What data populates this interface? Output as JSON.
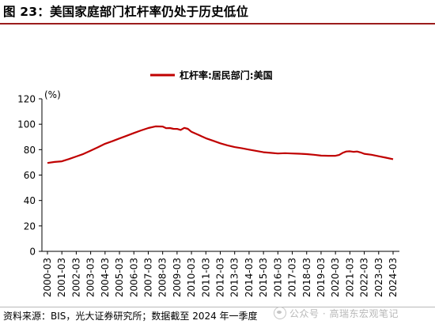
{
  "figure": {
    "title": "图 23：美国家庭部门杠杆率仍处于历史低位",
    "source": "资料来源：BIS，光大证券研究所；数据截至 2024 年一季度",
    "watermark": "公众号 · 高瑞东宏观笔记"
  },
  "colors": {
    "series": "#c00000",
    "title_rule": "#9b1c1c"
  },
  "chart_data": {
    "type": "line",
    "ylabel": "(%)",
    "ylim": [
      0,
      120
    ],
    "yticks": [
      0,
      20,
      40,
      60,
      80,
      100,
      120
    ],
    "grid": false,
    "legend_position": "top-center",
    "x_tick_labels": [
      "2000-03",
      "2001-03",
      "2002-03",
      "2003-03",
      "2004-03",
      "2005-03",
      "2006-03",
      "2007-03",
      "2008-03",
      "2009-03",
      "2010-03",
      "2011-03",
      "2012-03",
      "2013-03",
      "2014-03",
      "2015-03",
      "2016-03",
      "2017-03",
      "2018-03",
      "2019-03",
      "2020-03",
      "2021-03",
      "2022-03",
      "2023-03",
      "2024-03"
    ],
    "series": [
      {
        "name": "杠杆率:居民部门:美国",
        "color": "#c00000",
        "x": [
          2000.0,
          2000.5,
          2001.0,
          2001.5,
          2002.0,
          2002.5,
          2003.0,
          2003.5,
          2004.0,
          2004.5,
          2005.0,
          2005.5,
          2006.0,
          2006.5,
          2007.0,
          2007.5,
          2008.0,
          2008.25,
          2008.5,
          2008.75,
          2009.0,
          2009.25,
          2009.5,
          2009.75,
          2010.0,
          2010.5,
          2011.0,
          2011.5,
          2012.0,
          2012.5,
          2013.0,
          2013.5,
          2014.0,
          2014.5,
          2015.0,
          2015.5,
          2016.0,
          2016.5,
          2017.0,
          2017.5,
          2018.0,
          2018.5,
          2019.0,
          2019.5,
          2020.0,
          2020.25,
          2020.5,
          2020.75,
          2021.0,
          2021.25,
          2021.5,
          2021.75,
          2022.0,
          2022.5,
          2023.0,
          2023.5,
          2024.0
        ],
        "values": [
          69.5,
          70.3,
          70.8,
          72.6,
          74.6,
          76.6,
          79.2,
          81.8,
          84.6,
          86.6,
          88.8,
          90.9,
          93.1,
          95.1,
          97.0,
          98.3,
          98.2,
          96.9,
          97.0,
          96.4,
          96.3,
          95.5,
          97.1,
          96.4,
          94.0,
          91.5,
          89.0,
          87.0,
          85.0,
          83.4,
          82.0,
          81.1,
          80.0,
          79.0,
          78.0,
          77.5,
          77.0,
          77.2,
          77.0,
          76.8,
          76.5,
          76.0,
          75.3,
          75.2,
          75.2,
          75.8,
          77.5,
          78.5,
          78.7,
          78.3,
          78.5,
          77.8,
          76.7,
          76.0,
          74.8,
          73.7,
          72.5
        ]
      }
    ]
  }
}
